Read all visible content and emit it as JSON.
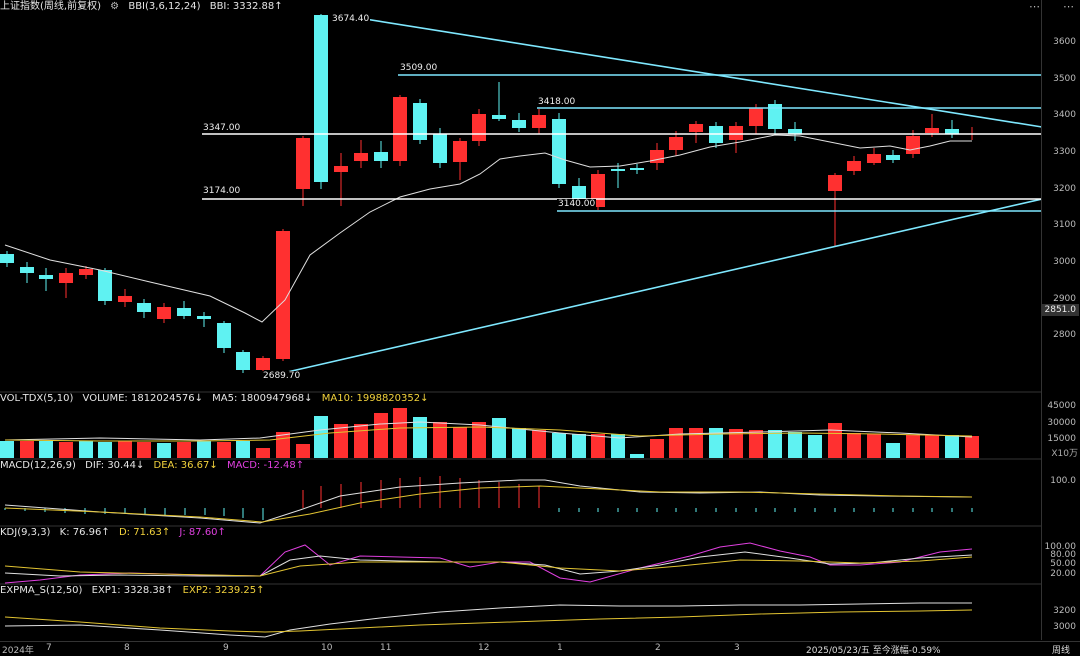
{
  "main": {
    "title": "上证指数(周线,前复权)",
    "bbi_label": "BBI(3,6,12,24)",
    "bbi_value": "BBI: 3332.88↑",
    "levels": [
      "3674.40",
      "3509.00",
      "3418.00",
      "3347.00",
      "3174.00",
      "3140.00",
      "2689.70"
    ],
    "axis": [
      "3600",
      "3500",
      "3400",
      "3300",
      "3200",
      "3100",
      "3000",
      "2900",
      "2800"
    ],
    "current_price": "2851.0"
  },
  "vol": {
    "title": "VOL-TDX(5,10)",
    "volume": "VOLUME: 1812024576↓",
    "ma5": "MA5: 1800947968↓",
    "ma10": "MA10: 1998820352↓",
    "axis": [
      "45000",
      "30000",
      "15000"
    ],
    "unit": "X10万"
  },
  "macd": {
    "title": "MACD(12,26,9)",
    "dif": "DIF: 30.44↓",
    "dea": "DEA: 36.67↓",
    "macd": "MACD: -12.48↑",
    "axis": [
      "100.0"
    ]
  },
  "kdj": {
    "title": "KDJ(9,3,3)",
    "k": "K: 76.96↑",
    "d": "D: 71.63↑",
    "j": "J: 87.60↑",
    "axis": [
      "100.00",
      "80.00",
      "50.00",
      "20.00"
    ]
  },
  "expma": {
    "title": "EXPMA_S(12,50)",
    "exp1": "EXP1: 3328.38↑",
    "exp2": "EXP2: 3239.25↑",
    "axis": [
      "3200",
      "3000"
    ]
  },
  "bottom": {
    "year": "2024年",
    "months": [
      "7",
      "8",
      "9",
      "10",
      "11",
      "12",
      "1",
      "2",
      "3"
    ],
    "date_info": "2025/05/23/五 至今涨幅-0.59%",
    "period": "周线"
  },
  "colors": {
    "up": "#ff3030",
    "down": "#5ff2f2",
    "ma": "#e0e0e0",
    "line": "#7fe8ff"
  }
}
